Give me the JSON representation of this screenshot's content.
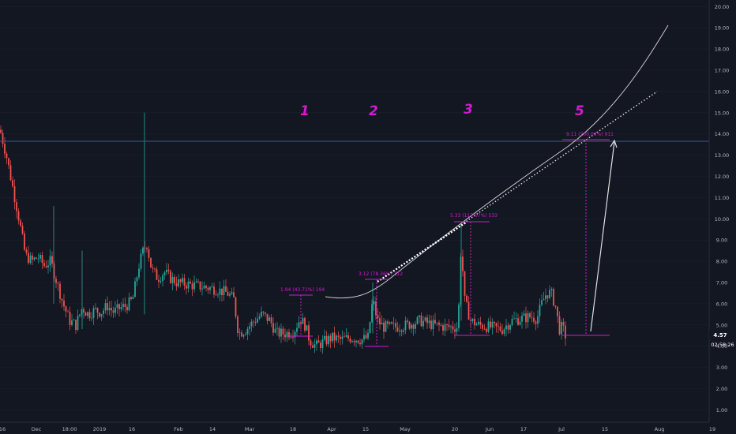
{
  "colors": {
    "background": "#131722",
    "grid": "#1c2030",
    "axis_text": "#b2b5be",
    "up_candle": "#26a69a",
    "down_candle": "#ef5350",
    "magenta_annotation": "#d21ad2",
    "horizontal_line": "#3d5a80",
    "price_tag_bg": "#131722",
    "projection_line": "#c8c8c8"
  },
  "price_axis": {
    "ticks": [
      "1.00",
      "2.00",
      "3.00",
      "4.00",
      "5.00",
      "6.00",
      "7.00",
      "8.00",
      "9.00",
      "10.00",
      "11.00",
      "12.00",
      "13.00",
      "14.00",
      "15.00",
      "16.00",
      "17.00",
      "18.00",
      "19.00",
      "20.00"
    ],
    "current_price": "4.57",
    "countdown": "02:58:26"
  },
  "time_axis": {
    "ticks": [
      "16",
      "Dec",
      "18:00",
      "2019",
      "16",
      "Feb",
      "14",
      "Mar",
      "18",
      "Apr",
      "15",
      "May",
      "20",
      "Jun",
      "17",
      "Jul",
      "15",
      "Aug",
      "19"
    ]
  },
  "wave_labels": [
    "1",
    "2",
    "3",
    "5"
  ],
  "annotations": {
    "box1": "1.94 (43.71%) 194",
    "box2": "3.12 (78.36%) 312",
    "box3": "5.33 (117.07%) 533",
    "box5": "9.11 (200.00%) 911"
  },
  "chart_data": {
    "type": "candlestick",
    "title": "",
    "xlabel": "",
    "ylabel": "",
    "ylim": [
      0.6,
      20.2
    ],
    "x_range": [
      "2018-11-16",
      "2019-08-19"
    ],
    "key_points": [
      {
        "x": "2018-11-16",
        "y": 14.0
      },
      {
        "x": "2018-11-26",
        "y": 8.0
      },
      {
        "x": "2018-12-03",
        "y": 5.0
      },
      {
        "x": "2019-01-20",
        "y": 11.5
      },
      {
        "x": "2019-02-01",
        "y": 7.0
      },
      {
        "x": "2019-03-01",
        "y": 4.5
      },
      {
        "x": "2019-03-25",
        "y": 6.2
      },
      {
        "x": "2019-04-01",
        "y": 3.9
      },
      {
        "x": "2019-04-18",
        "y": 6.8
      },
      {
        "x": "2019-05-23",
        "y": 8.9
      },
      {
        "x": "2019-06-25",
        "y": 6.8
      },
      {
        "x": "2019-07-02",
        "y": 4.57
      }
    ],
    "horizontal_level": 13.65,
    "projected_target": 13.65
  }
}
